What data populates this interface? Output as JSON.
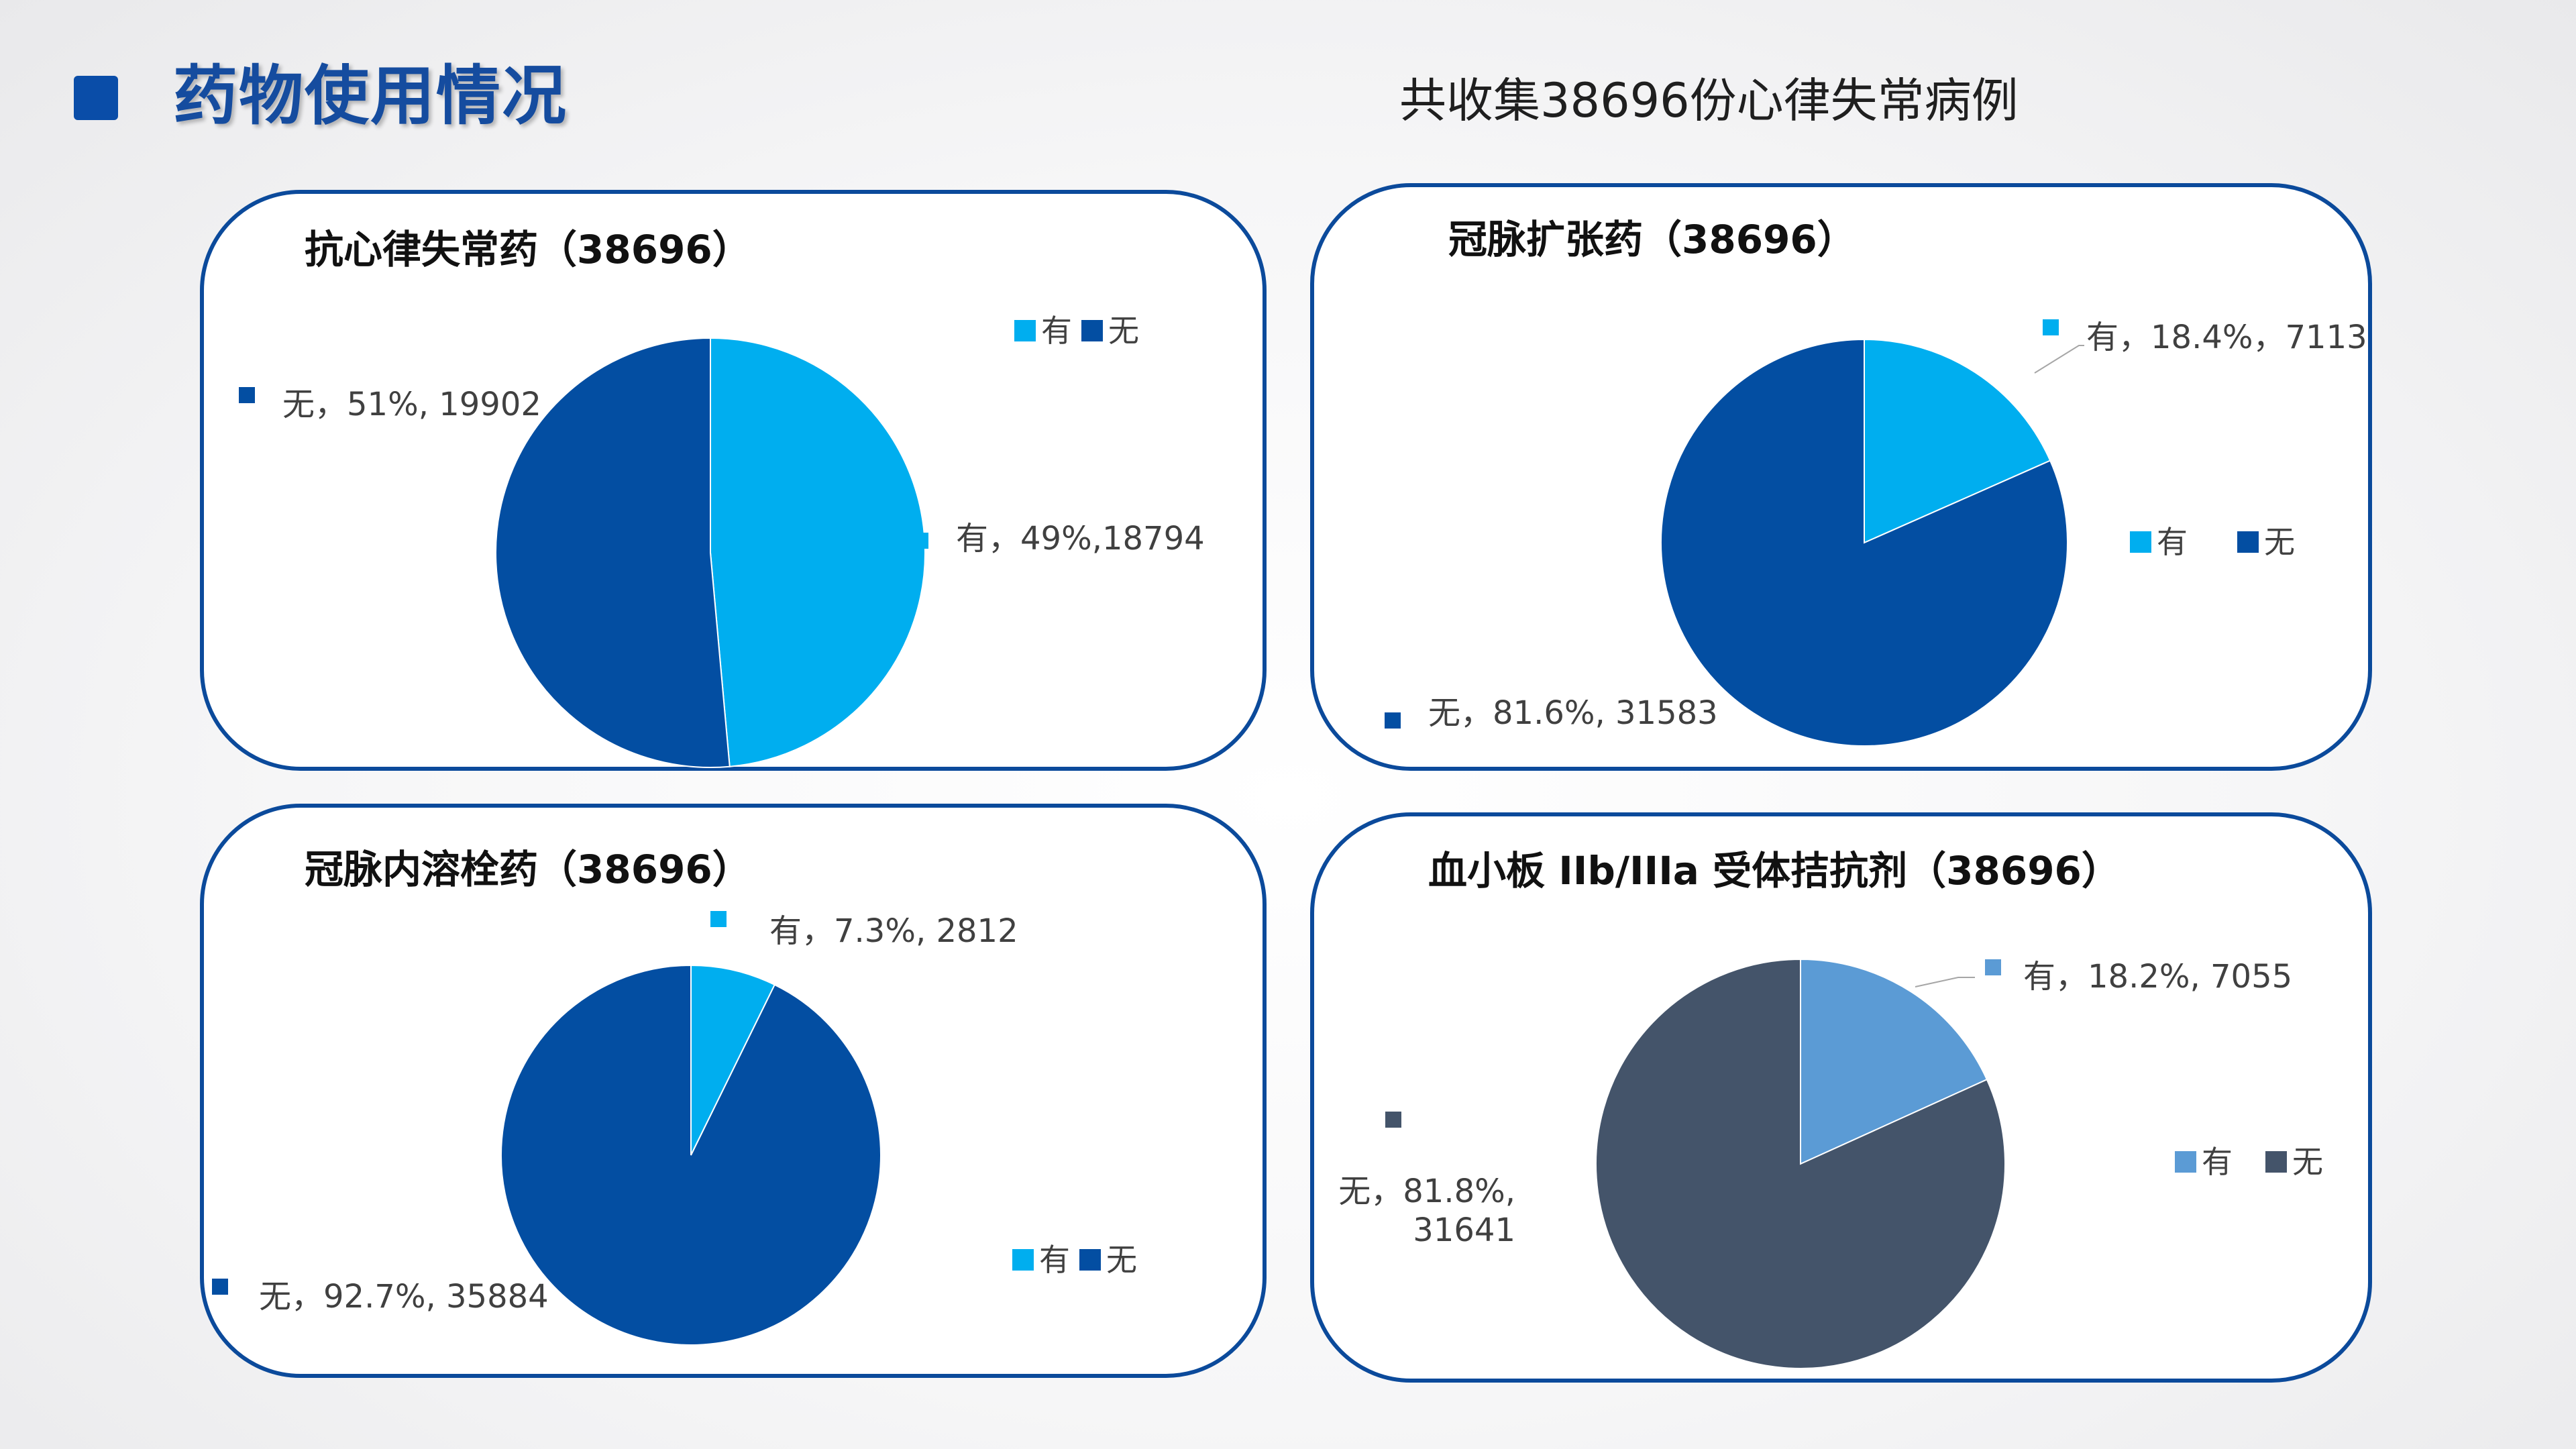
{
  "page": {
    "title": "药物使用情况",
    "subtitle": "共收集38696份心律失常病例"
  },
  "colors": {
    "light_blue": "#00aeef",
    "dark_blue": "#034ea2",
    "steel_blue": "#5b9bd5",
    "slate": "#44546a",
    "accent_border": "#0b4a9b"
  },
  "chart_data": [
    {
      "type": "pie",
      "title": "抗心律失常药（38696）",
      "categories": [
        "有",
        "无"
      ],
      "values": [
        18794,
        19902
      ],
      "percents": [
        49,
        51
      ],
      "data_labels": [
        "有，49%,18794",
        "无，51%, 19902"
      ],
      "colors": [
        "#00aeef",
        "#034ea2"
      ],
      "legend": "top-right"
    },
    {
      "type": "pie",
      "title": "冠脉扩张药（38696）",
      "categories": [
        "有",
        "无"
      ],
      "values": [
        7113,
        31583
      ],
      "percents": [
        18.4,
        81.6
      ],
      "data_labels": [
        "有，18.4%，7113",
        "无，81.6%, 31583"
      ],
      "colors": [
        "#00aeef",
        "#034ea2"
      ],
      "legend": "right"
    },
    {
      "type": "pie",
      "title": "冠脉内溶栓药（38696）",
      "categories": [
        "有",
        "无"
      ],
      "values": [
        2812,
        35884
      ],
      "percents": [
        7.3,
        92.7
      ],
      "data_labels": [
        "有，7.3%, 2812",
        "无，92.7%, 35884"
      ],
      "colors": [
        "#00aeef",
        "#034ea2"
      ],
      "legend": "bottom-right"
    },
    {
      "type": "pie",
      "title": "血小板 IIb/IIIa 受体拮抗剂（38696）",
      "categories": [
        "有",
        "无"
      ],
      "values": [
        7055,
        31641
      ],
      "percents": [
        18.2,
        81.8
      ],
      "data_labels": [
        "有，18.2%, 7055",
        "无，81.8%,\n31641"
      ],
      "colors": [
        "#5b9bd5",
        "#44546a"
      ],
      "legend": "right"
    }
  ]
}
